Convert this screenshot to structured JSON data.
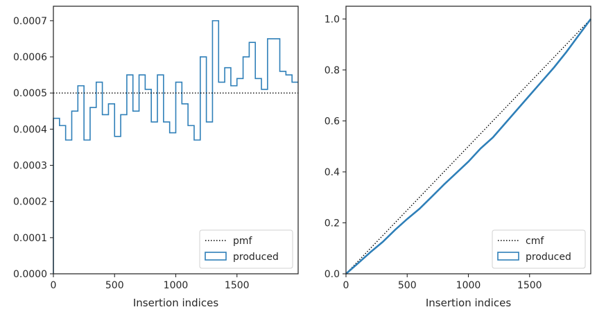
{
  "chart_data": [
    {
      "type": "histogram-step",
      "xlabel": "Insertion indices",
      "ylabel": "",
      "xlim": [
        0,
        2000
      ],
      "ylim": [
        0,
        0.00074
      ],
      "xticks": [
        0,
        500,
        1000,
        1500
      ],
      "xtick_labels": [
        "0",
        "500",
        "1000",
        "1500"
      ],
      "yticks": [
        0,
        0.0001,
        0.0002,
        0.0003,
        0.0004,
        0.0005,
        0.0006,
        0.0007
      ],
      "ytick_labels": [
        "0.0000",
        "0.0001",
        "0.0002",
        "0.0003",
        "0.0004",
        "0.0005",
        "0.0006",
        "0.0007"
      ],
      "reference_line": {
        "name": "pmf",
        "value": 0.0005,
        "style": "dotted",
        "color": "#000000"
      },
      "series": [
        {
          "name": "produced",
          "color": "#2e7fb8",
          "bin_width": 50,
          "values": [
            0.00043,
            0.00041,
            0.00037,
            0.00045,
            0.00052,
            0.00037,
            0.00046,
            0.00053,
            0.00044,
            0.00047,
            0.00038,
            0.00044,
            0.00055,
            0.00045,
            0.00055,
            0.00051,
            0.00042,
            0.00055,
            0.00042,
            0.00039,
            0.00053,
            0.00047,
            0.00041,
            0.00037,
            0.0006,
            0.00042,
            0.0007,
            0.00053,
            0.00057,
            0.00052,
            0.00054,
            0.0006,
            0.00064,
            0.00054,
            0.00051,
            0.00065,
            0.00065,
            0.00056,
            0.00055,
            0.00053
          ]
        }
      ],
      "legend": {
        "placement": "lower-right",
        "entries": [
          "pmf",
          "produced"
        ]
      }
    },
    {
      "type": "line",
      "xlabel": "Insertion indices",
      "ylabel": "",
      "xlim": [
        0,
        2000
      ],
      "ylim": [
        0,
        1.05
      ],
      "xticks": [
        0,
        500,
        1000,
        1500
      ],
      "xtick_labels": [
        "0",
        "500",
        "1000",
        "1500"
      ],
      "yticks": [
        0,
        0.2,
        0.4,
        0.6,
        0.8,
        1.0
      ],
      "ytick_labels": [
        "0.0",
        "0.2",
        "0.4",
        "0.6",
        "0.8",
        "1.0"
      ],
      "reference_line": {
        "name": "cmf",
        "from": [
          0,
          0
        ],
        "to": [
          2000,
          1.0
        ],
        "style": "dotted",
        "color": "#000000"
      },
      "series": [
        {
          "name": "produced",
          "color": "#2e7fb8",
          "x": [
            0,
            100,
            200,
            300,
            400,
            500,
            600,
            700,
            800,
            900,
            1000,
            1100,
            1200,
            1300,
            1400,
            1500,
            1600,
            1700,
            1800,
            1900,
            2000
          ],
          "y": [
            0,
            0.042,
            0.085,
            0.125,
            0.172,
            0.215,
            0.255,
            0.302,
            0.35,
            0.395,
            0.44,
            0.492,
            0.535,
            0.59,
            0.645,
            0.7,
            0.755,
            0.81,
            0.87,
            0.935,
            1.0
          ]
        }
      ],
      "legend": {
        "placement": "lower-right",
        "entries": [
          "cmf",
          "produced"
        ]
      }
    }
  ]
}
